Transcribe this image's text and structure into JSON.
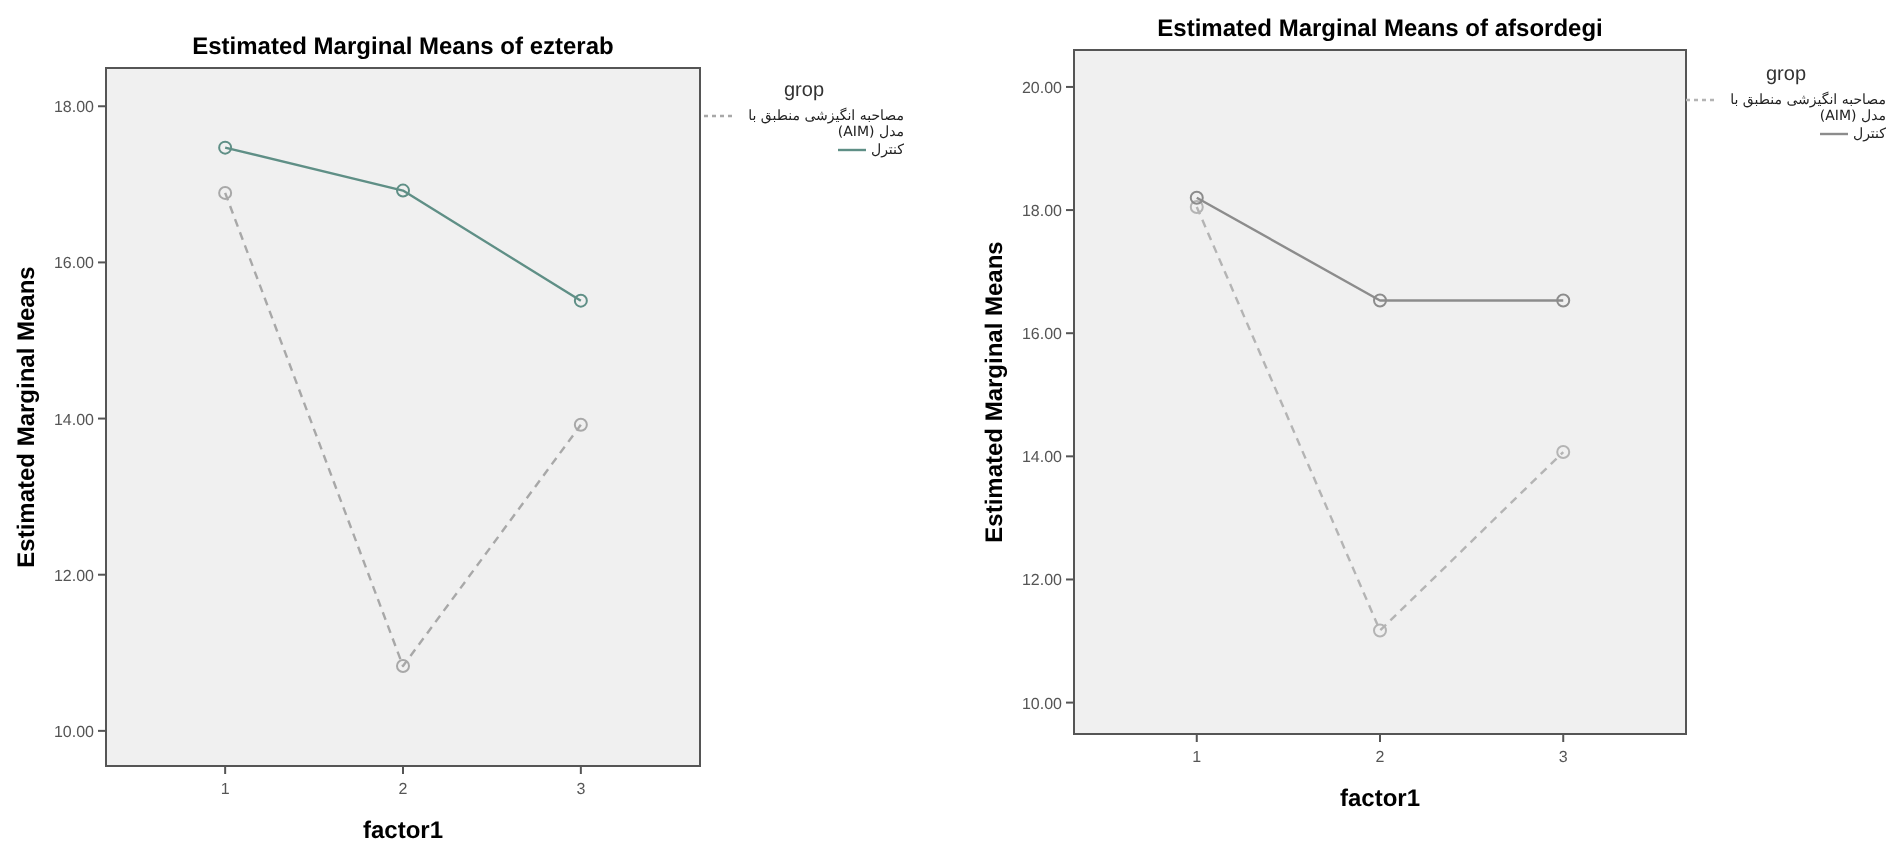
{
  "chart_data": [
    {
      "type": "line",
      "title": "Estimated Marginal Means of ezterab",
      "xlabel": "factor1",
      "ylabel": "Estimated Marginal Means",
      "legend_title": "grop",
      "legend": "right",
      "marker": "circle",
      "categories": [
        "1",
        "2",
        "3"
      ],
      "ylim": [
        9.55,
        18.49
      ],
      "yticks": [
        {
          "value": 10,
          "label": "10.00"
        },
        {
          "value": 12,
          "label": "12.00"
        },
        {
          "value": 14,
          "label": "14.00"
        },
        {
          "value": 16,
          "label": "16.00"
        },
        {
          "value": 18,
          "label": "18.00"
        }
      ],
      "series": [
        {
          "name": "مصاحبه انگیزشی منطبق با مدل (AIM)",
          "color": "#a8a8a8",
          "line_style": "dashed",
          "values": [
            16.89,
            10.83,
            13.92
          ]
        },
        {
          "name": "کنترل",
          "color": "#5f8f86",
          "line_style": "solid",
          "values": [
            17.47,
            16.92,
            15.51
          ]
        }
      ]
    },
    {
      "type": "line",
      "title": "Estimated Marginal Means of afsordegi",
      "xlabel": "factor1",
      "ylabel": "Estimated Marginal Means",
      "legend_title": "grop",
      "legend": "right",
      "marker": "circle",
      "categories": [
        "1",
        "2",
        "3"
      ],
      "ylim": [
        9.49,
        20.6
      ],
      "yticks": [
        {
          "value": 10,
          "label": "10.00"
        },
        {
          "value": 12,
          "label": "12.00"
        },
        {
          "value": 14,
          "label": "14.00"
        },
        {
          "value": 16,
          "label": "16.00"
        },
        {
          "value": 18,
          "label": "18.00"
        },
        {
          "value": 20,
          "label": "20.00"
        }
      ],
      "series": [
        {
          "name": "مصاحبه انگیزشی منطبق با مدل (AIM)",
          "color": "#b4b4b4",
          "line_style": "dashed",
          "values": [
            18.05,
            11.17,
            14.07
          ]
        },
        {
          "name": "کنترل",
          "color": "#8c8c8c",
          "line_style": "solid",
          "values": [
            18.2,
            16.53,
            16.53
          ]
        }
      ]
    }
  ]
}
